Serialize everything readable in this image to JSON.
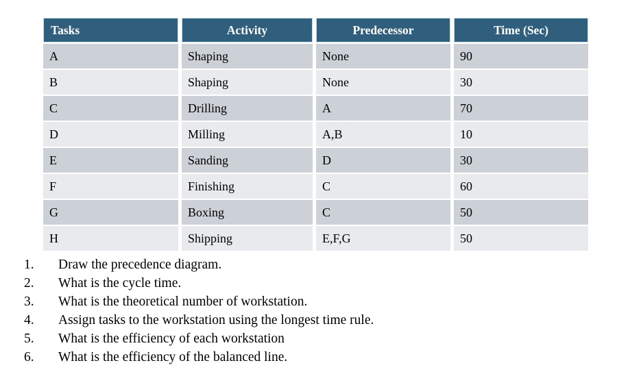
{
  "colors": {
    "header-bg": "#2F5F7D",
    "header-text": "#FFFFFF",
    "row-dark": "#CCD1D8",
    "row-light": "#E8EAED",
    "body-text": "#000000"
  },
  "table": {
    "columns": [
      "Tasks",
      "Activity",
      "Predecessor",
      "Time (Sec)"
    ],
    "rows": [
      {
        "task": "A",
        "activity": "Shaping",
        "predecessor": "None",
        "time": "90"
      },
      {
        "task": "B",
        "activity": "Shaping",
        "predecessor": "None",
        "time": "30"
      },
      {
        "task": "C",
        "activity": "Drilling",
        "predecessor": "A",
        "time": "70"
      },
      {
        "task": "D",
        "activity": "Milling",
        "predecessor": "A,B",
        "time": "10"
      },
      {
        "task": "E",
        "activity": "Sanding",
        "predecessor": "D",
        "time": "30"
      },
      {
        "task": "F",
        "activity": "Finishing",
        "predecessor": "C",
        "time": "60"
      },
      {
        "task": "G",
        "activity": "Boxing",
        "predecessor": "C",
        "time": "50"
      },
      {
        "task": "H",
        "activity": "Shipping",
        "predecessor": "E,F,G",
        "time": "50"
      }
    ]
  },
  "questions": {
    "items": [
      {
        "num": "1.",
        "text": "Draw the precedence diagram."
      },
      {
        "num": "2.",
        "text": "What is the cycle time."
      },
      {
        "num": "3.",
        "text": "What is the theoretical number of workstation."
      },
      {
        "num": "4.",
        "text": "Assign tasks to the workstation using the longest time rule."
      },
      {
        "num": "5.",
        "text": "What is the efficiency of each workstation"
      },
      {
        "num": "6.",
        "text": "What is the efficiency of the balanced line."
      }
    ]
  }
}
